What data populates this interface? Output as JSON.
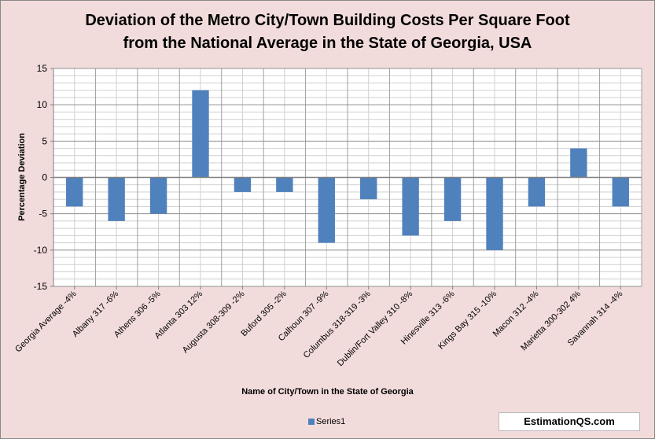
{
  "chart_data": {
    "type": "bar",
    "title_lines": [
      "Deviation of the Metro City/Town Building Costs Per Square Foot",
      "from the National Average in the State of Georgia, USA"
    ],
    "categories": [
      "Georgia Average -4%",
      "Albany 317 -6%",
      "Athens 306 -5%",
      "Atlanta 303 12%",
      "Augusta 308-309 -2%",
      "Buford 305 -2%",
      "Calhoun 307 -9%",
      "Columbus 318-319 -3%",
      "Dublin/Fort Valley 310 -8%",
      "Hinesville 313 -6%",
      "Kings Bay 315 -10%",
      "Macon 312 -4%",
      "Marietta 300-302 4%",
      "Savannah 314 -4%"
    ],
    "series": [
      {
        "name": "Series1",
        "values": [
          -4,
          -6,
          -5,
          12,
          -2,
          -2,
          -9,
          -3,
          -8,
          -6,
          -10,
          -4,
          4,
          -4
        ],
        "color": "#4f81bd"
      }
    ],
    "xlabel": "Name of City/Town in the State of Georgia",
    "ylabel": "Percentage Deviation",
    "ylim": [
      -15,
      15
    ],
    "yticks": [
      15,
      10,
      5,
      0,
      -5,
      -10,
      -15
    ],
    "grid": true,
    "legend_position": "bottom"
  },
  "watermark": "EstimationQS.com"
}
